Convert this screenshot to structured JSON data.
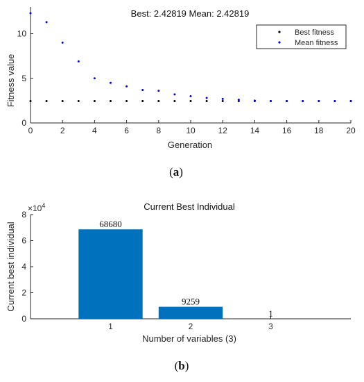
{
  "chart_data": [
    {
      "type": "scatter",
      "title_best_label": "Best:",
      "title_best_value": "2.42819",
      "title_mean_label": "Mean:",
      "title_mean_value": "2.42819",
      "xlabel": "Generation",
      "ylabel": "Fitness value",
      "xlim": [
        0,
        20
      ],
      "ylim": [
        0,
        13
      ],
      "x_ticks": [
        0,
        2,
        4,
        6,
        8,
        10,
        12,
        14,
        16,
        18,
        20
      ],
      "y_ticks": [
        0,
        5,
        10
      ],
      "grid": false,
      "legend_placement": "top-right",
      "series": [
        {
          "name": "Best fitness",
          "color": "#000000",
          "x": [
            0,
            1,
            2,
            3,
            4,
            5,
            6,
            7,
            8,
            9,
            10,
            11,
            12,
            13,
            14,
            15,
            16,
            17,
            18,
            19,
            20
          ],
          "y": [
            2.45,
            2.45,
            2.45,
            2.45,
            2.45,
            2.45,
            2.45,
            2.45,
            2.45,
            2.45,
            2.45,
            2.45,
            2.45,
            2.45,
            2.45,
            2.45,
            2.45,
            2.45,
            2.45,
            2.45,
            2.45
          ]
        },
        {
          "name": "Mean fitness",
          "color": "#0000ff",
          "x": [
            0,
            1,
            2,
            3,
            4,
            5,
            6,
            7,
            8,
            9,
            10,
            11,
            12,
            13,
            14,
            15,
            16,
            17,
            18,
            19,
            20
          ],
          "y": [
            12.3,
            11.3,
            9.0,
            6.9,
            5.0,
            4.5,
            4.1,
            3.7,
            3.6,
            3.2,
            3.0,
            2.8,
            2.7,
            2.6,
            2.5,
            2.45,
            2.45,
            2.45,
            2.45,
            2.45,
            2.45
          ]
        }
      ]
    },
    {
      "type": "bar",
      "title": "Current Best Individual",
      "xlabel": "Number of variables (3)",
      "ylabel": "Current best individual",
      "y_exponent_base": "×10",
      "y_exponent_power": "4",
      "categories": [
        "1",
        "2",
        "3"
      ],
      "values": [
        68680,
        9259,
        1
      ],
      "value_labels": [
        "68680",
        "9259",
        "1"
      ],
      "bar_color": "#0072bd",
      "ylim": [
        0,
        80000
      ],
      "y_ticks": [
        0,
        20000,
        40000,
        60000,
        80000
      ],
      "y_tick_labels": [
        "0",
        "2",
        "4",
        "6",
        "8"
      ],
      "grid": false
    }
  ],
  "captions": {
    "a_open": "(",
    "a_letter": "a",
    "a_close": ")",
    "b_open": "(",
    "b_letter": "b",
    "b_close": ")"
  }
}
